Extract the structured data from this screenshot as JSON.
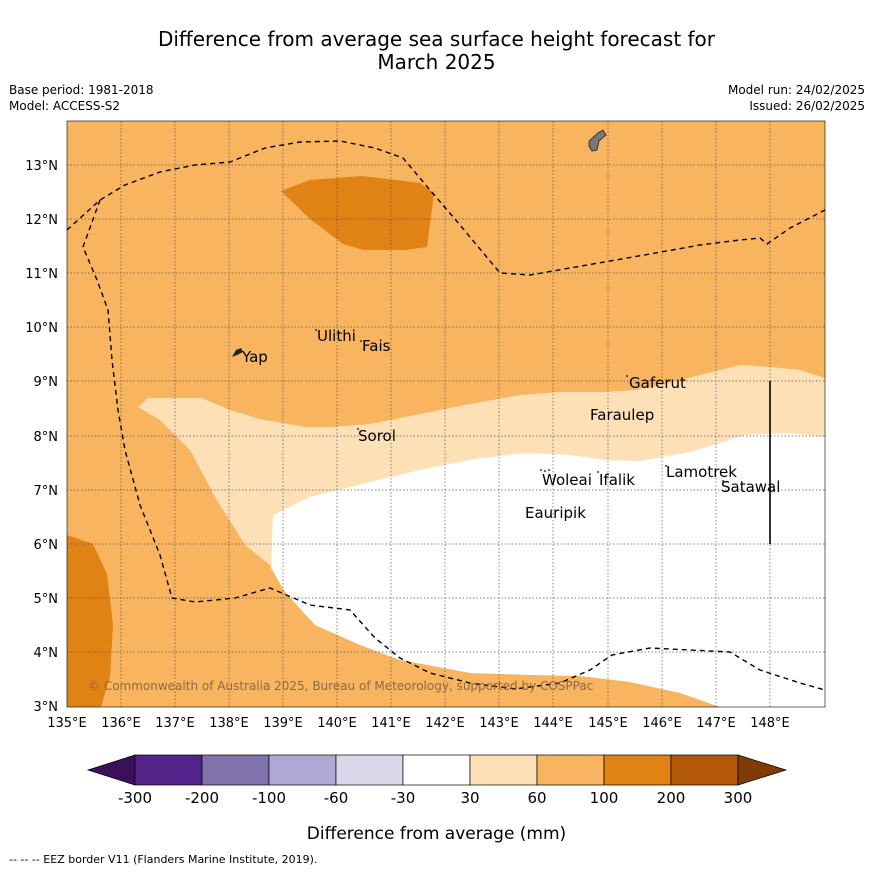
{
  "header": {
    "title_line1": "Difference from average sea surface height forecast for",
    "title_line2": "March 2025",
    "base_period": "Base period: 1981-2018",
    "model": "Model: ACCESS-S2",
    "model_run": "Model run: 24/02/2025",
    "issued": "Issued: 26/02/2025"
  },
  "map": {
    "lon_ticks": [
      "135°E",
      "136°E",
      "137°E",
      "138°E",
      "139°E",
      "140°E",
      "141°E",
      "142°E",
      "143°E",
      "144°E",
      "145°E",
      "146°E",
      "147°E",
      "148°E"
    ],
    "lat_ticks": [
      "13°N",
      "12°N",
      "11°N",
      "10°N",
      "9°N",
      "8°N",
      "7°N",
      "6°N",
      "5°N",
      "4°N",
      "3°N"
    ],
    "places": {
      "yap": "Yap",
      "ulithi": "Ulithi",
      "fais": "Fais",
      "sorol": "Sorol",
      "gaferut": "Gaferut",
      "faraulep": "Faraulep",
      "woleai": "Woleai",
      "ifalik": "Ifalik",
      "lamotrek": "Lamotrek",
      "satawal": "Satawal",
      "eauripik": "Eauripik"
    },
    "copyright": "© Commonwealth of Australia 2025, Bureau of Meteorology, supported by COSPPac"
  },
  "colorbar": {
    "labels": [
      "-300",
      "-200",
      "-100",
      "-60",
      "-30",
      "30",
      "60",
      "100",
      "200",
      "300"
    ],
    "colors": [
      "#3b0f5a",
      "#54248a",
      "#7f72ad",
      "#b0a8d2",
      "#dad9ec",
      "#ffffff",
      "#fde0b6",
      "#f8b45e",
      "#e08214",
      "#b35806",
      "#7f3b08"
    ],
    "title": "Difference from average (mm)"
  },
  "footnote": "--  --  -- EEZ border V11 (Flanders Marine Institute, 2019)."
}
